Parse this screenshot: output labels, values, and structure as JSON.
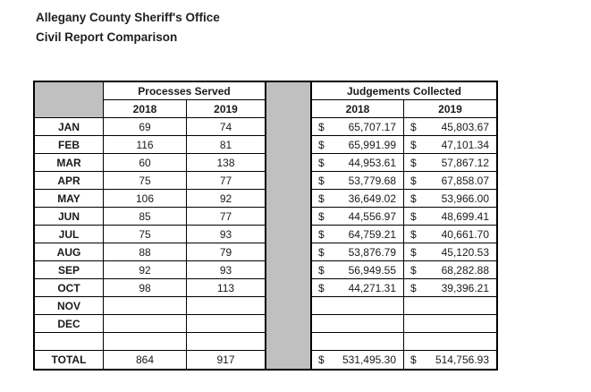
{
  "title": {
    "line1": "Allegany County Sheriff's Office",
    "line2": "Civil Report Comparison"
  },
  "colors": {
    "spacer_gray": "#c0c0c0",
    "border_black": "#000000",
    "background": "#ffffff"
  },
  "table": {
    "section_processes": "Processes Served",
    "section_judgements": "Judgements Collected",
    "year_headers": {
      "p2018": "2018",
      "p2019": "2019",
      "j2018": "2018",
      "j2019": "2019"
    },
    "rows": [
      {
        "month": "JAN",
        "p2018": "69",
        "p2019": "74",
        "cur": "$",
        "j2018": "65,707.17",
        "j2019": "45,803.67"
      },
      {
        "month": "FEB",
        "p2018": "116",
        "p2019": "81",
        "cur": "$",
        "j2018": "65,991.99",
        "j2019": "47,101.34"
      },
      {
        "month": "MAR",
        "p2018": "60",
        "p2019": "138",
        "cur": "$",
        "j2018": "44,953.61",
        "j2019": "57,867.12"
      },
      {
        "month": "APR",
        "p2018": "75",
        "p2019": "77",
        "cur": "$",
        "j2018": "53,779.68",
        "j2019": "67,858.07"
      },
      {
        "month": "MAY",
        "p2018": "106",
        "p2019": "92",
        "cur": "$",
        "j2018": "36,649.02",
        "j2019": "53,966.00"
      },
      {
        "month": "JUN",
        "p2018": "85",
        "p2019": "77",
        "cur": "$",
        "j2018": "44,556.97",
        "j2019": "48,699.41"
      },
      {
        "month": "JUL",
        "p2018": "75",
        "p2019": "93",
        "cur": "$",
        "j2018": "64,759.21",
        "j2019": "40,661.70"
      },
      {
        "month": "AUG",
        "p2018": "88",
        "p2019": "79",
        "cur": "$",
        "j2018": "53,876.79",
        "j2019": "45,120.53"
      },
      {
        "month": "SEP",
        "p2018": "92",
        "p2019": "93",
        "cur": "$",
        "j2018": "56,949.55",
        "j2019": "68,282.88"
      },
      {
        "month": "OCT",
        "p2018": "98",
        "p2019": "113",
        "cur": "$",
        "j2018": "44,271.31",
        "j2019": "39,396.21"
      },
      {
        "month": "NOV",
        "p2018": "",
        "p2019": "",
        "cur": "",
        "j2018": "",
        "j2019": ""
      },
      {
        "month": "DEC",
        "p2018": "",
        "p2019": "",
        "cur": "",
        "j2018": "",
        "j2019": ""
      },
      {
        "month": "",
        "p2018": "",
        "p2019": "",
        "cur": "",
        "j2018": "",
        "j2019": ""
      }
    ],
    "total": {
      "label": "TOTAL",
      "p2018": "864",
      "p2019": "917",
      "cur": "$",
      "j2018": "531,495.30",
      "j2019": "514,756.93"
    }
  }
}
